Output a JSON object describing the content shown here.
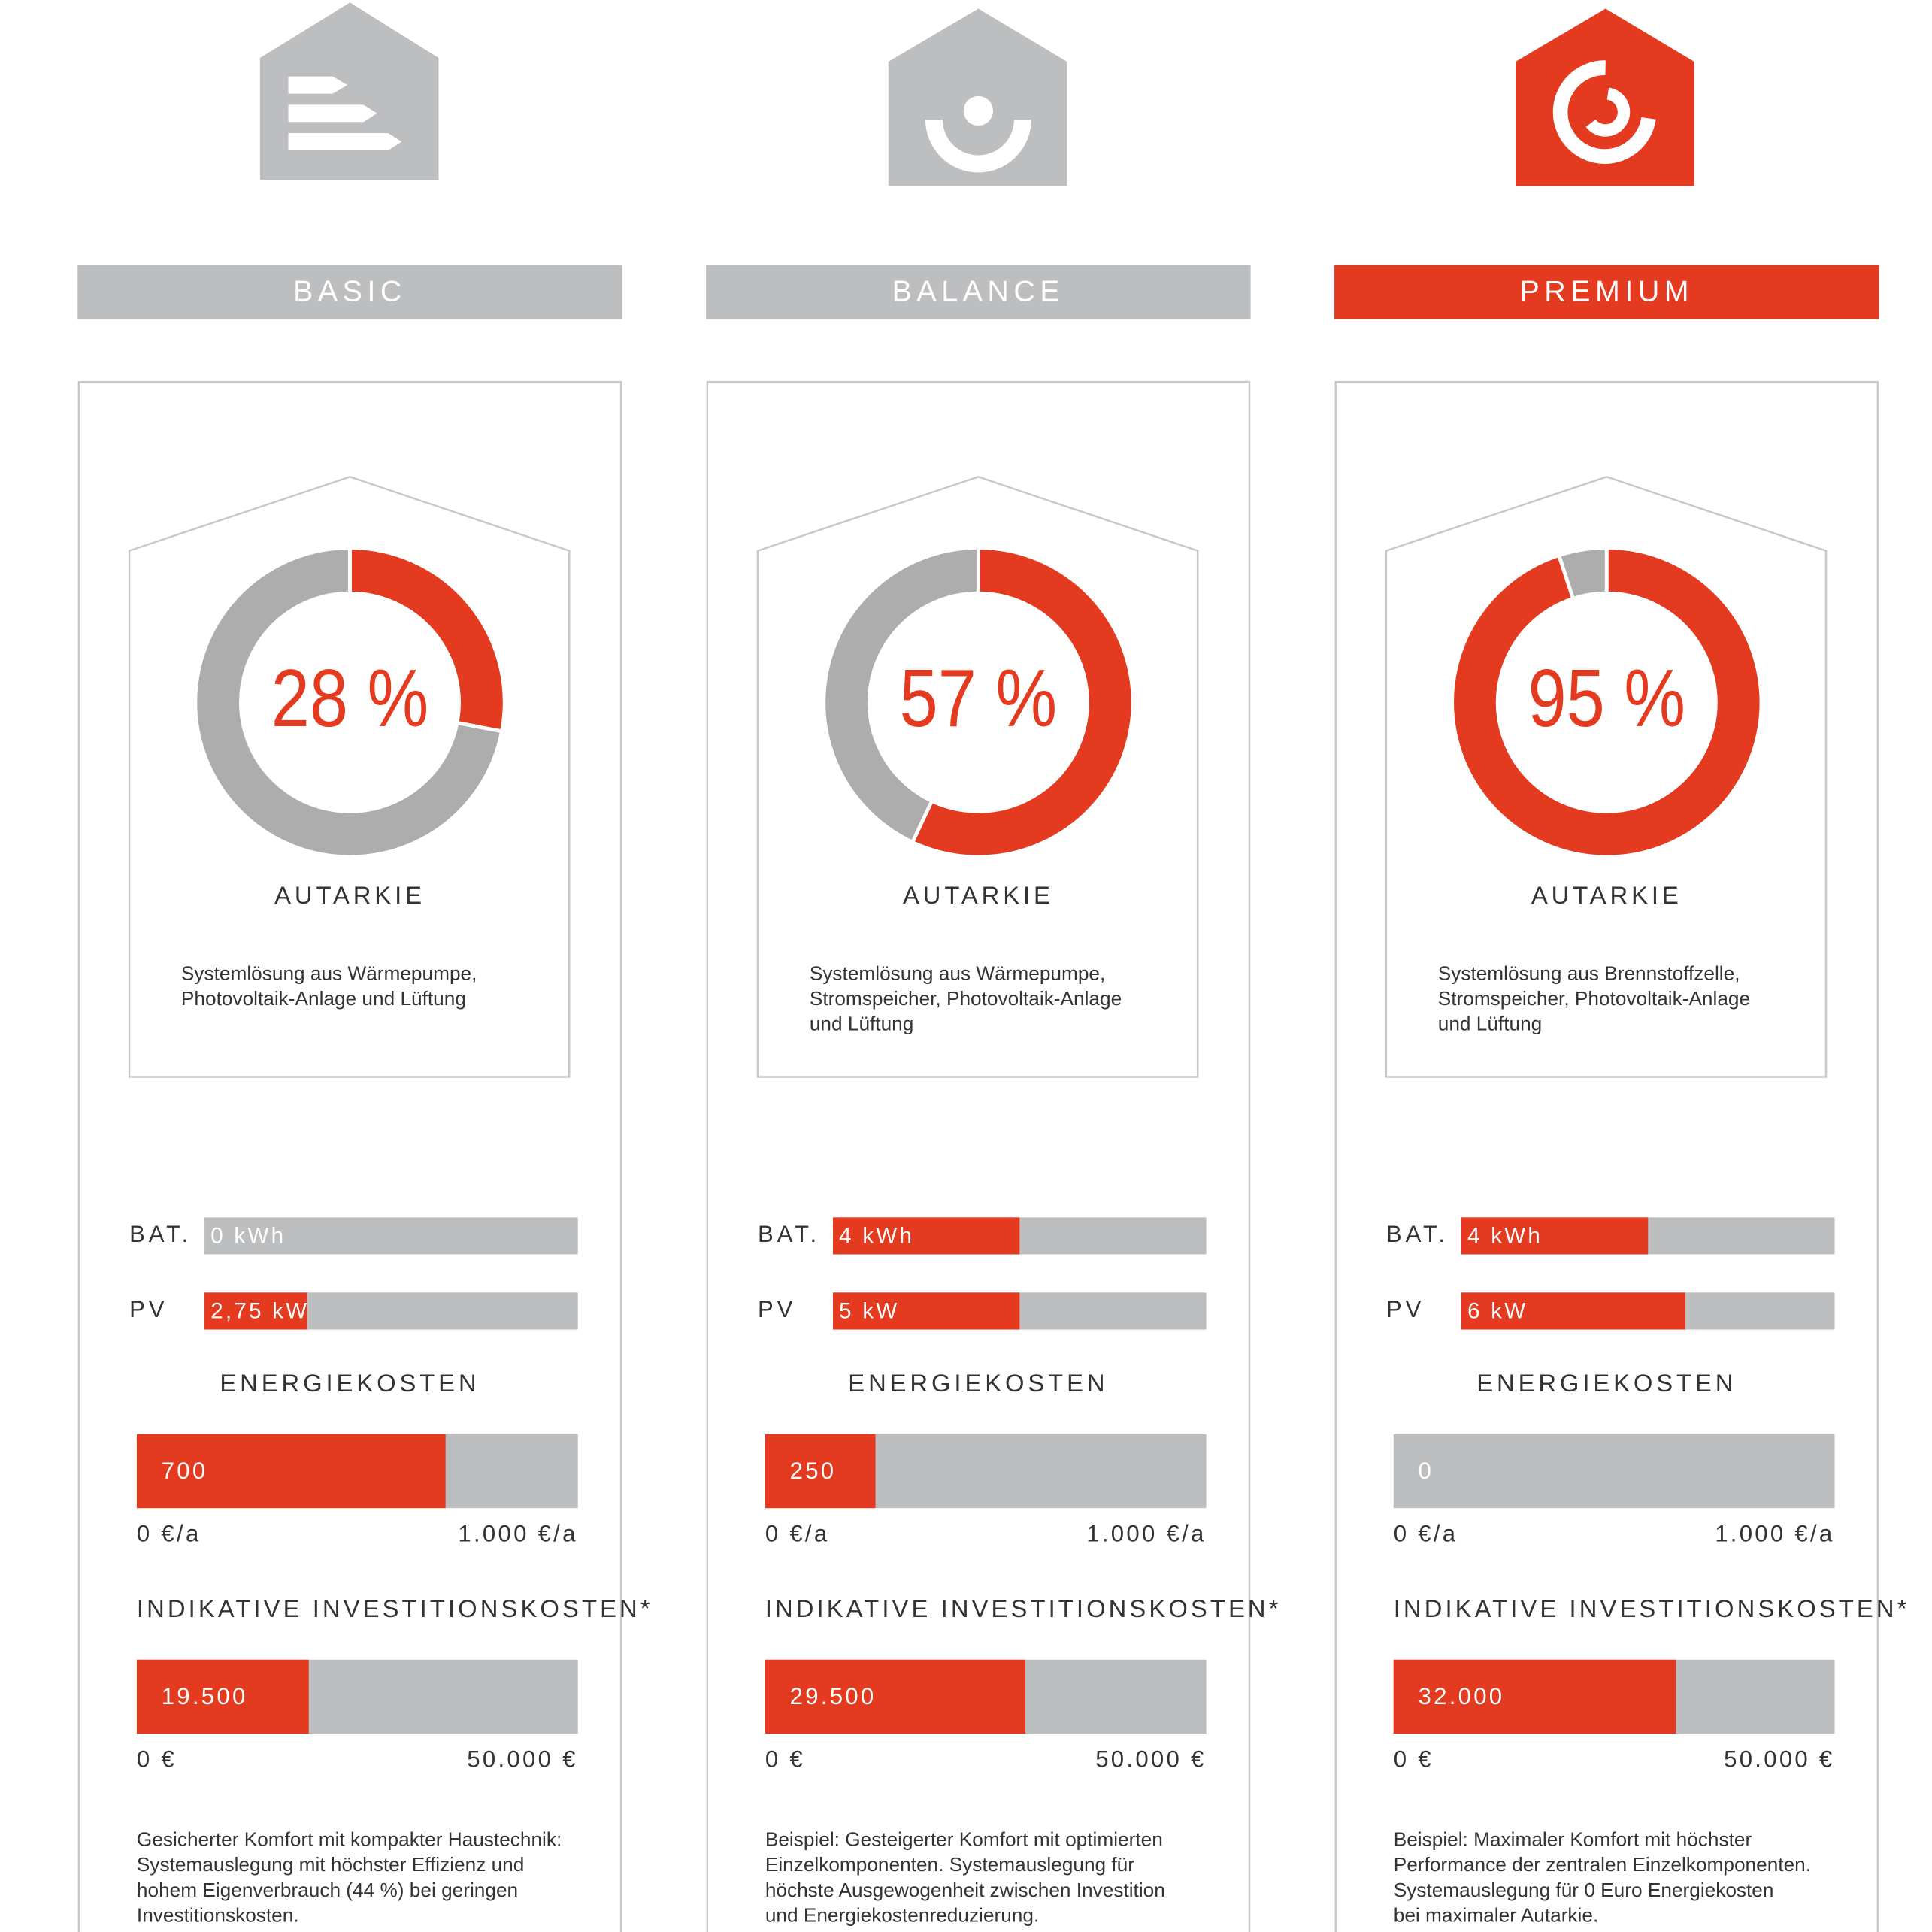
{
  "columns": [
    {
      "name": "BASIC",
      "header_color": "#bcbec0",
      "autarkie": {
        "value": 28,
        "label": "28 %",
        "title": "AUTARKIE"
      },
      "description": [
        "Systemlösung aus Wärmepumpe,",
        "Photovoltaik-Anlage und Lüftung"
      ],
      "battery": {
        "label": "BAT.",
        "value": 0,
        "value_label": "0 kWh",
        "xlim": [
          0,
          8
        ]
      },
      "pv": {
        "label": "PV",
        "value": 2.75,
        "value_label": "2,75 kW",
        "xlim": [
          0,
          10
        ]
      },
      "energy_costs": {
        "title": "ENERGIEKOSTEN",
        "value": 700,
        "xlim": [
          0,
          1000
        ],
        "min_label": "0 €/a",
        "max_label": "1.000 €/a"
      },
      "investment": {
        "title": "INDIKATIVE INVESTITIONSKOSTEN*",
        "value": 19500,
        "value_label": "19.500",
        "xlim": [
          0,
          50000
        ],
        "min_label": "0 €",
        "max_label": "50.000 €"
      },
      "note": [
        "Gesicherter Komfort mit kompakter Haustechnik:",
        "Systemauslegung mit höchster Effizienz und",
        "hohem Eigenverbrauch (44 %) bei geringen",
        "Investitionskosten."
      ]
    },
    {
      "name": "BALANCE",
      "header_color": "#bcbec0",
      "autarkie": {
        "value": 57,
        "label": "57 %",
        "title": "AUTARKIE"
      },
      "description": [
        "Systemlösung aus Wärmepumpe,",
        "Stromspeicher, Photovoltaik-Anlage",
        "und Lüftung"
      ],
      "battery": {
        "label": "BAT.",
        "value": 4,
        "value_label": "4 kWh",
        "xlim": [
          0,
          8
        ]
      },
      "pv": {
        "label": "PV",
        "value": 5,
        "value_label": "5 kW",
        "xlim": [
          0,
          10
        ]
      },
      "energy_costs": {
        "title": "ENERGIEKOSTEN",
        "value": 250,
        "xlim": [
          0,
          1000
        ],
        "min_label": "0 €/a",
        "max_label": "1.000 €/a"
      },
      "investment": {
        "title": "INDIKATIVE INVESTITIONSKOSTEN*",
        "value": 29500,
        "value_label": "29.500",
        "xlim": [
          0,
          50000
        ],
        "min_label": "0 €",
        "max_label": "50.000 €"
      },
      "note": [
        "Beispiel: Gesteigerter Komfort mit optimierten",
        "Einzelkomponenten. Systemauslegung für",
        "höchste Ausgewogenheit zwischen Investition",
        "und Energiekostenreduzierung."
      ]
    },
    {
      "name": "PREMIUM",
      "header_color": "#e43a20",
      "autarkie": {
        "value": 95,
        "label": "95 %",
        "title": "AUTARKIE"
      },
      "description": [
        "Systemlösung aus Brennstoffzelle,",
        "Stromspeicher, Photovoltaik-Anlage",
        "und Lüftung"
      ],
      "battery": {
        "label": "BAT.",
        "value": 4,
        "value_label": "4 kWh",
        "xlim": [
          0,
          8
        ]
      },
      "pv": {
        "label": "PV",
        "value": 6,
        "value_label": "6 kW",
        "xlim": [
          0,
          10
        ]
      },
      "energy_costs": {
        "title": "ENERGIEKOSTEN",
        "value": 0,
        "xlim": [
          0,
          1000
        ],
        "min_label": "0 €/a",
        "max_label": "1.000 €/a"
      },
      "investment": {
        "title": "INDIKATIVE INVESTITIONSKOSTEN*",
        "value": 32000,
        "value_label": "32.000",
        "xlim": [
          0,
          50000
        ],
        "min_label": "0 €",
        "max_label": "50.000 €"
      },
      "note": [
        "Beispiel: Maximaler Komfort mit höchster",
        "Performance der zentralen Einzelkomponenten.",
        "Systemauslegung für 0 Euro Energiekosten",
        "bei maximaler Autarkie."
      ]
    }
  ]
}
